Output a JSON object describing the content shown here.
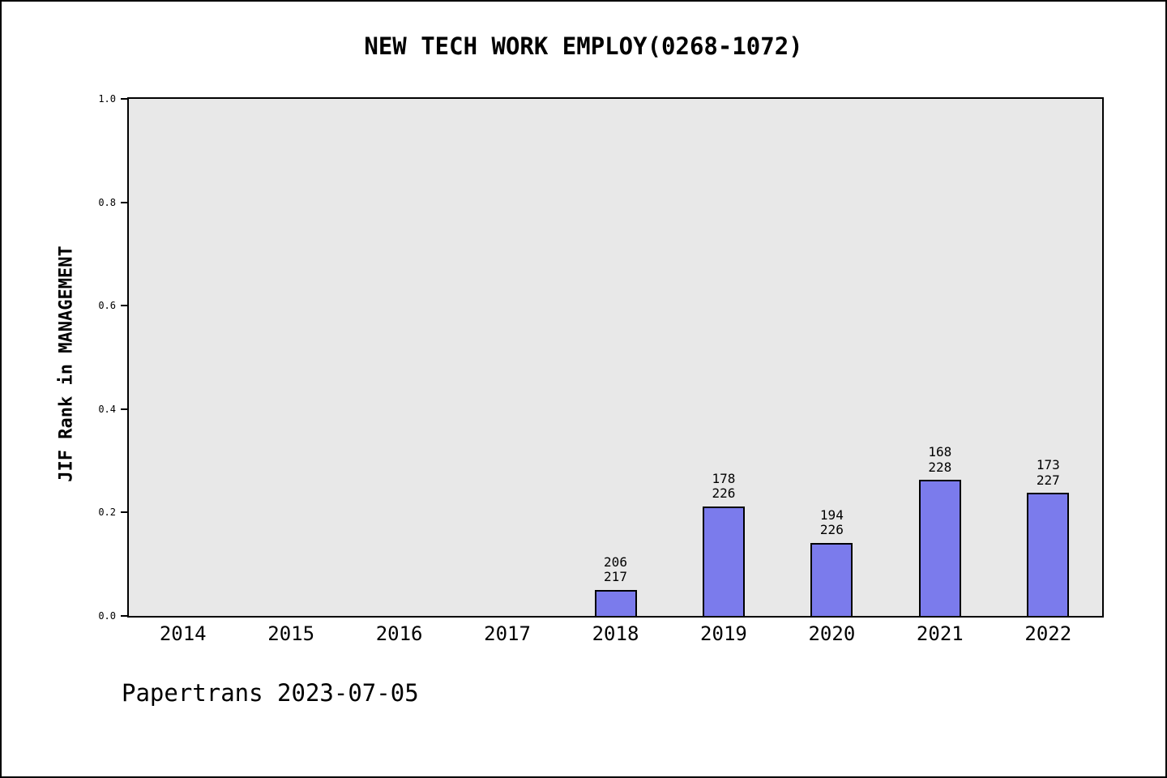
{
  "page": {
    "footer": "Papertrans 2023-07-05"
  },
  "chart_data": {
    "type": "bar",
    "title": "NEW TECH WORK EMPLOY(0268-1072)",
    "xlabel": "",
    "ylabel": "JIF Rank in MANAGEMENT",
    "ylim": [
      0.0,
      1.0
    ],
    "yticks": [
      0.0,
      0.2,
      0.4,
      0.6,
      0.8,
      1.0
    ],
    "grid": false,
    "legend": null,
    "plot_bg": "#e8e8e8",
    "bar_color": "#7b7bec",
    "categories": [
      "2014",
      "2015",
      "2016",
      "2017",
      "2018",
      "2019",
      "2020",
      "2021",
      "2022"
    ],
    "series": [
      {
        "category": "2014",
        "value": null,
        "label": null
      },
      {
        "category": "2015",
        "value": null,
        "label": null
      },
      {
        "category": "2016",
        "value": null,
        "label": null
      },
      {
        "category": "2017",
        "value": null,
        "label": null
      },
      {
        "category": "2018",
        "value": 0.0507,
        "label": "206\n217",
        "rank": 206,
        "total": 217
      },
      {
        "category": "2019",
        "value": 0.2124,
        "label": "178\n226",
        "rank": 178,
        "total": 226
      },
      {
        "category": "2020",
        "value": 0.1416,
        "label": "194\n226",
        "rank": 194,
        "total": 226
      },
      {
        "category": "2021",
        "value": 0.2632,
        "label": "168\n228",
        "rank": 168,
        "total": 228
      },
      {
        "category": "2022",
        "value": 0.2379,
        "label": "173\n227",
        "rank": 173,
        "total": 227
      }
    ]
  }
}
